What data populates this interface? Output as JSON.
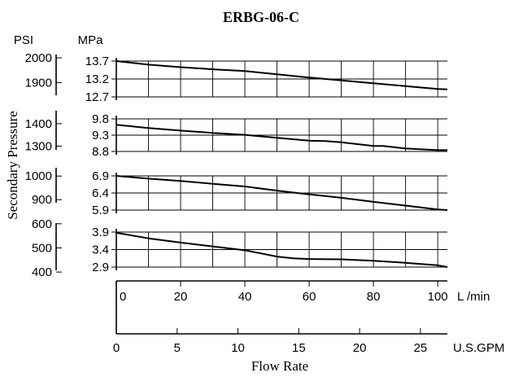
{
  "chart_data": {
    "type": "line",
    "title": "ERBG-06-C",
    "ylabel": "Secondary Pressure",
    "xlabel": "Flow Rate",
    "x_units": [
      "L /min",
      "U.S.GPM"
    ],
    "y_units": [
      "PSI",
      "MPa"
    ],
    "x_lpm_ticks": [
      "0",
      "20",
      "40",
      "60",
      "80",
      "100"
    ],
    "x_gpm_ticks": [
      "0",
      "5",
      "10",
      "15",
      "20",
      "25"
    ],
    "x_lim_lpm": [
      0,
      103
    ],
    "grid": true,
    "panels": [
      {
        "name": "panel-1",
        "mpa_ticks": [
          13.7,
          13.2,
          12.7
        ],
        "mpa_labels": [
          "13.7",
          "13.2",
          "12.7"
        ],
        "psi_labels": [
          "2000",
          "1900"
        ],
        "psi_ticks": [
          2000,
          1900
        ],
        "ylim_mpa": [
          12.7,
          13.7
        ],
        "x": [
          0,
          10,
          20,
          30,
          40,
          50,
          60,
          70,
          80,
          90,
          100,
          103
        ],
        "y": [
          13.7,
          13.6,
          13.53,
          13.47,
          13.42,
          13.33,
          13.24,
          13.16,
          13.08,
          13.0,
          12.92,
          12.91
        ]
      },
      {
        "name": "panel-2",
        "mpa_ticks": [
          9.8,
          9.3,
          8.8
        ],
        "mpa_labels": [
          "9.8",
          "9.3",
          "8.8"
        ],
        "psi_labels": [
          "1400",
          "1300"
        ],
        "psi_ticks": [
          1400,
          1300
        ],
        "ylim_mpa": [
          8.8,
          9.8
        ],
        "x": [
          0,
          10,
          20,
          30,
          40,
          50,
          60,
          65,
          70,
          80,
          83,
          90,
          100,
          103
        ],
        "y": [
          9.62,
          9.52,
          9.44,
          9.37,
          9.31,
          9.22,
          9.13,
          9.12,
          9.08,
          8.97,
          8.97,
          8.89,
          8.84,
          8.84
        ]
      },
      {
        "name": "panel-3",
        "mpa_ticks": [
          6.9,
          6.4,
          5.9
        ],
        "mpa_labels": [
          "6.9",
          "6.4",
          "5.9"
        ],
        "psi_labels": [
          "1000",
          "900"
        ],
        "psi_ticks": [
          1000,
          900
        ],
        "ylim_mpa": [
          5.9,
          6.9
        ],
        "x": [
          0,
          10,
          20,
          30,
          40,
          50,
          60,
          70,
          80,
          90,
          100,
          103
        ],
        "y": [
          6.9,
          6.82,
          6.75,
          6.67,
          6.59,
          6.47,
          6.36,
          6.26,
          6.14,
          6.03,
          5.92,
          5.9
        ]
      },
      {
        "name": "panel-4",
        "mpa_ticks": [
          3.9,
          3.4,
          2.9
        ],
        "mpa_labels": [
          "3.9",
          "3.4",
          "2.9"
        ],
        "psi_labels": [
          "600",
          "500",
          "400"
        ],
        "psi_ticks": [
          600,
          500,
          400
        ],
        "ylim_mpa": [
          2.9,
          3.9
        ],
        "x": [
          0,
          10,
          20,
          30,
          40,
          45,
          50,
          55,
          60,
          70,
          80,
          90,
          100,
          103
        ],
        "y": [
          3.88,
          3.72,
          3.6,
          3.49,
          3.38,
          3.29,
          3.2,
          3.15,
          3.13,
          3.12,
          3.08,
          3.02,
          2.95,
          2.9
        ]
      }
    ]
  }
}
